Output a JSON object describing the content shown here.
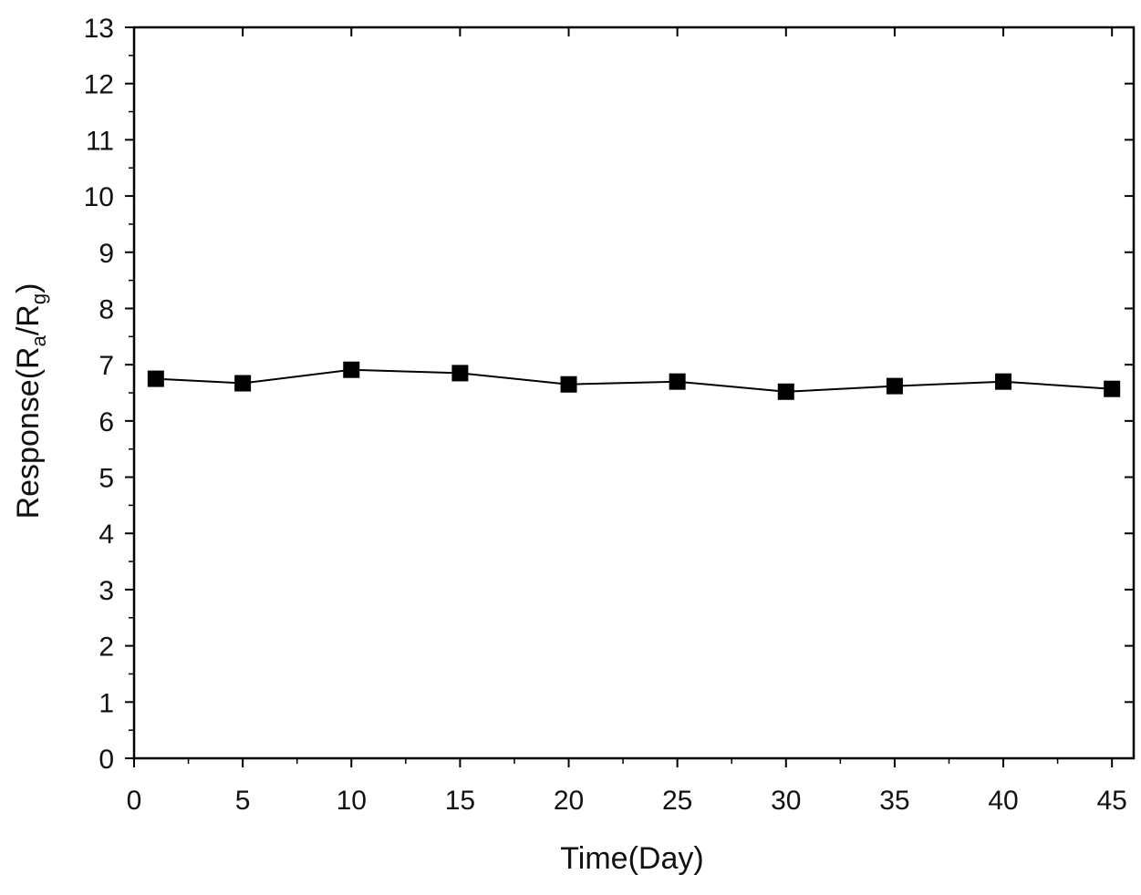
{
  "chart_data": {
    "type": "line",
    "title": "",
    "xlabel": "Time(Day)",
    "ylabel": {
      "prefix": "Response(R",
      "sub1": "a",
      "mid": "/R",
      "sub2": "g",
      "suffix": ")"
    },
    "xlim": [
      0,
      46
    ],
    "ylim": [
      0,
      13
    ],
    "x_ticks": [
      0,
      5,
      10,
      15,
      20,
      25,
      30,
      35,
      40,
      45
    ],
    "y_ticks": [
      0,
      1,
      2,
      3,
      4,
      5,
      6,
      7,
      8,
      9,
      10,
      11,
      12,
      13
    ],
    "x_minor_step": 2.5,
    "y_minor_step": 0.5,
    "grid": false,
    "legend": "none",
    "colors": {
      "line": "#000000",
      "marker": "#000000",
      "axis": "#000000"
    },
    "series": [
      {
        "marker": "square",
        "x": [
          1,
          5,
          10,
          15,
          20,
          25,
          30,
          35,
          40,
          45
        ],
        "y": [
          6.75,
          6.67,
          6.91,
          6.85,
          6.65,
          6.7,
          6.52,
          6.62,
          6.7,
          6.57
        ]
      }
    ]
  }
}
